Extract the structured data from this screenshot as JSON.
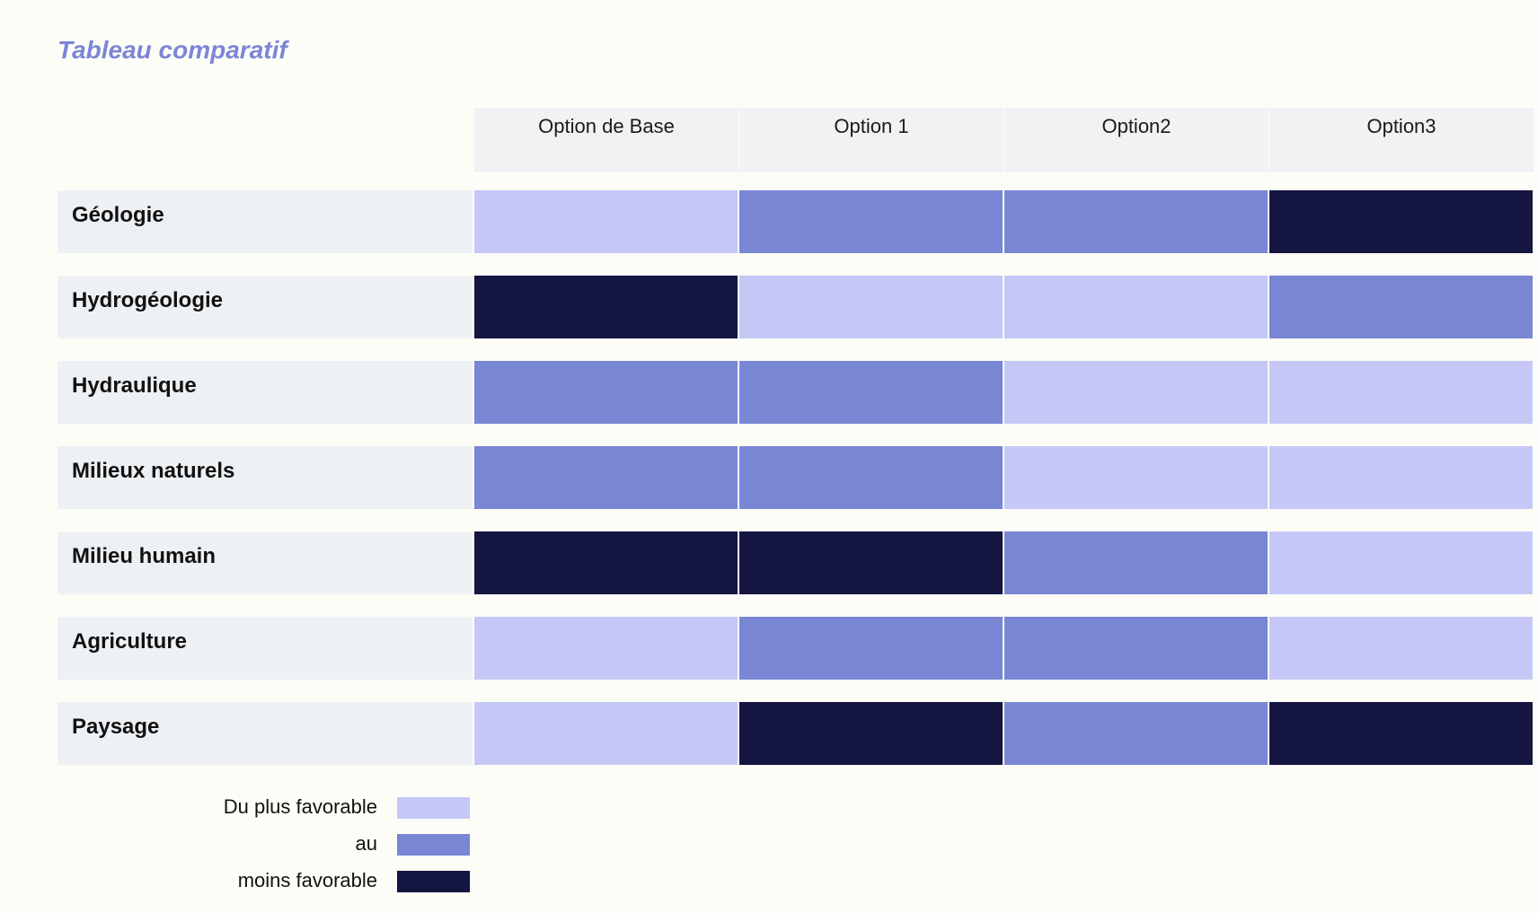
{
  "title": "Tableau comparatif",
  "colors": {
    "1": "#c5c8f6",
    "2": "#7886d4",
    "3": "#141541"
  },
  "chart_data": {
    "type": "heatmap",
    "title": "Tableau comparatif",
    "columns": [
      "Option de Base",
      "Option 1",
      "Option2",
      "Option3"
    ],
    "rows": [
      "Géologie",
      "Hydrogéologie",
      "Hydraulique",
      "Milieux naturels",
      "Milieu humain",
      "Agriculture",
      "Paysage"
    ],
    "values": [
      [
        1,
        2,
        2,
        3
      ],
      [
        3,
        1,
        1,
        2
      ],
      [
        2,
        2,
        1,
        1
      ],
      [
        2,
        2,
        1,
        1
      ],
      [
        3,
        3,
        2,
        1
      ],
      [
        1,
        2,
        2,
        1
      ],
      [
        1,
        3,
        2,
        3
      ]
    ],
    "scale": {
      "1": "Du plus favorable",
      "2": "au",
      "3": "moins favorable"
    }
  },
  "legend": [
    {
      "label": "Du plus favorable",
      "level": 1
    },
    {
      "label": "au",
      "level": 2
    },
    {
      "label": "moins favorable",
      "level": 3
    }
  ]
}
